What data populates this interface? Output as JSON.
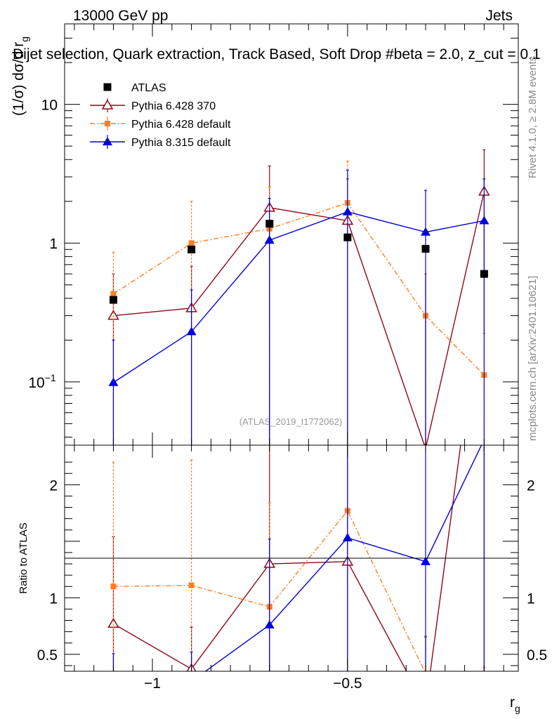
{
  "header": {
    "left": "13000 GeV pp",
    "right": "Jets",
    "title": "Dijet selection, Quark extraction, Track Based, Soft Drop #beta = 2.0, z_cut = 0.1"
  },
  "side": {
    "rivet": "Rivet 4.1.0, ≥ 2.8M events",
    "mcplots": "mcplots.cern.ch [arXiv:2401.10621]"
  },
  "watermark": "(ATLAS_2019_I1772062)",
  "chart_data": {
    "type": "line",
    "x": [
      -1.1,
      -0.9,
      -0.7,
      -0.5,
      -0.3,
      -0.15
    ],
    "xlabel": "r_g",
    "ylabel": "(1/σ) dσ/d r_g",
    "ratio_ylabel": "Ratio to ATLAS",
    "xlim": [
      -1.225,
      -0.0625
    ],
    "ylim": [
      0.035,
      38
    ],
    "ratio_ylim": [
      0.35,
      2.35
    ],
    "yscale": "log",
    "grid": false,
    "legend_position": "top-left",
    "xticks": [
      {
        "v": -1,
        "label": "−1"
      },
      {
        "v": -0.5,
        "label": "−0.5"
      }
    ],
    "yticks": [
      {
        "v": 10,
        "label": "10"
      },
      {
        "v": 1,
        "label": "1"
      },
      {
        "v": 0.1,
        "label": "10^-1"
      }
    ],
    "ratio_yticks": [
      {
        "v": 2,
        "label": "2"
      },
      {
        "v": 1,
        "label": "1"
      },
      {
        "v": 0.5,
        "label": "0.5"
      }
    ],
    "series": [
      {
        "name": "ATLAS",
        "style": "data",
        "color": "#000000",
        "values": [
          0.39,
          0.9,
          1.38,
          1.1,
          0.91,
          0.6
        ]
      },
      {
        "name": "Pythia 6.428 370",
        "style": "open-triangle",
        "color": "#8b0a1a",
        "values": [
          0.3,
          0.34,
          1.8,
          1.45,
          0.033,
          2.35
        ],
        "err_hi": [
          0.6,
          0.68,
          3.6,
          2.9,
          0.6,
          4.7
        ],
        "err_lo": [
          0.0,
          0.0,
          0.0,
          0.0,
          0.0,
          0.22
        ],
        "ratio": [
          0.77,
          0.37,
          1.3,
          1.32,
          0.036,
          3.9
        ]
      },
      {
        "name": "Pythia 6.428 default",
        "style": "square-dashdot",
        "color": "#ff7f1f",
        "values": [
          0.43,
          1.0,
          1.27,
          1.95,
          0.3,
          0.112
        ],
        "err_hi": [
          0.86,
          2.0,
          2.54,
          3.9,
          0.6,
          0.224
        ],
        "err_lo": [
          0.2,
          0.0,
          0.0,
          0.0,
          0.0,
          0.0
        ],
        "ratio": [
          1.1,
          1.11,
          0.92,
          1.77,
          0.33,
          0.19
        ]
      },
      {
        "name": "Pythia 8.315 default",
        "style": "filled-triangle",
        "color": "#0000dd",
        "values": [
          0.099,
          0.23,
          1.05,
          1.68,
          1.2,
          1.45
        ],
        "err_hi": [
          0.2,
          0.46,
          2.1,
          3.36,
          2.4,
          2.9
        ],
        "err_lo": [
          0.0,
          0.0,
          0.0,
          0.0,
          0.0,
          0.0
        ],
        "ratio": [
          0.25,
          0.26,
          0.76,
          1.53,
          1.32,
          2.4
        ]
      }
    ]
  }
}
